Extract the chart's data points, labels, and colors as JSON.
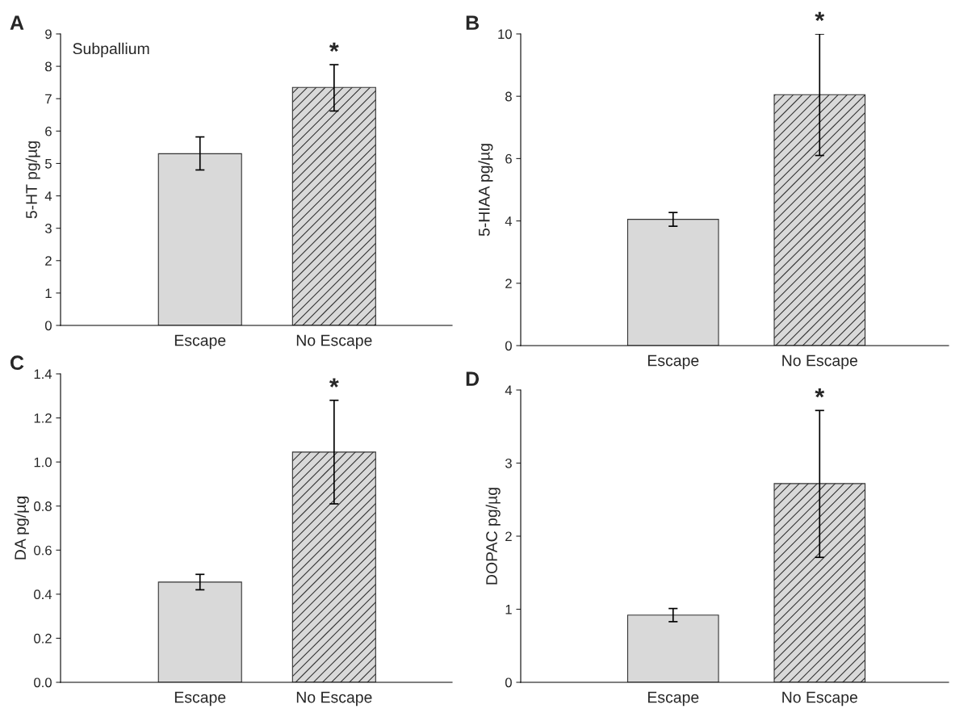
{
  "chart_data": [
    {
      "type": "bar",
      "title": "A",
      "ylabel": "5-HT pg/µg",
      "categories": [
        "Escape",
        "No Escape"
      ],
      "values": [
        5.3,
        7.35
      ],
      "errors": [
        [
          4.8,
          5.82
        ],
        [
          6.62,
          8.05
        ]
      ],
      "colors": [
        "#d9d9d9",
        "#d9d9d9"
      ],
      "ylim": [
        0,
        9
      ],
      "yticks": [
        0,
        1,
        2,
        3,
        4,
        5,
        6,
        7,
        8,
        9
      ],
      "grid": false,
      "legend": false,
      "annotations": [
        "Subpallium",
        {
          "text": "*",
          "x": "No Escape",
          "y": 8.05
        }
      ]
    },
    {
      "type": "bar",
      "title": "B",
      "ylabel": "5-HIAA pg/µg",
      "categories": [
        "Escape",
        "No Escape"
      ],
      "values": [
        4.05,
        8.05
      ],
      "errors": [
        [
          3.83,
          4.27
        ],
        [
          6.1,
          10.0
        ]
      ],
      "colors": [
        "#d9d9d9",
        "#d9d9d9"
      ],
      "ylim": [
        0,
        10
      ],
      "yticks": [
        0,
        2,
        4,
        6,
        8,
        10
      ],
      "grid": false,
      "legend": false,
      "annotations": [
        {
          "text": "*",
          "x": "No Escape",
          "y": 10.0
        }
      ]
    },
    {
      "type": "bar",
      "title": "C",
      "ylabel": "DA pg/µg",
      "categories": [
        "Escape",
        "No Escape"
      ],
      "values": [
        0.455,
        1.045
      ],
      "errors": [
        [
          0.42,
          0.49
        ],
        [
          0.81,
          1.28
        ]
      ],
      "colors": [
        "#d9d9d9",
        "#d9d9d9"
      ],
      "ylim": [
        0,
        1.4
      ],
      "yticks": [
        {
          "value": 0,
          "label": "0.0"
        },
        {
          "value": 0.2,
          "label": "0.2"
        },
        {
          "value": 0.4,
          "label": "0.4"
        },
        {
          "value": 0.6,
          "label": "0.6"
        },
        {
          "value": 0.8,
          "label": "0.8"
        },
        {
          "value": 1.0,
          "label": "1.0"
        },
        {
          "value": 1.2,
          "label": "1.2"
        },
        {
          "value": 1.4,
          "label": "1.4"
        }
      ],
      "grid": false,
      "legend": false,
      "annotations": [
        {
          "text": "*",
          "x": "No Escape",
          "y": 1.28
        }
      ]
    },
    {
      "type": "bar",
      "title": "D",
      "ylabel": "DOPAC pg/µg",
      "categories": [
        "Escape",
        "No Escape"
      ],
      "values": [
        0.92,
        2.72
      ],
      "errors": [
        [
          0.83,
          1.01
        ],
        [
          1.71,
          3.72
        ]
      ],
      "colors": [
        "#d9d9d9",
        "#d9d9d9"
      ],
      "ylim": [
        0,
        4
      ],
      "yticks": [
        0,
        1,
        2,
        3,
        4
      ],
      "grid": false,
      "legend": false,
      "annotations": [
        {
          "text": "*",
          "x": "No Escape",
          "y": 3.72
        }
      ]
    }
  ]
}
